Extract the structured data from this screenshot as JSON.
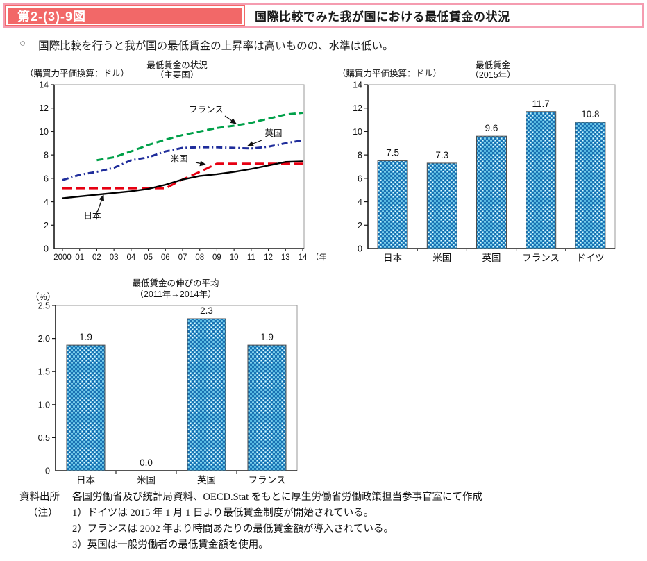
{
  "header": {
    "tag": "第2-(3)-9図",
    "title": "国際比較でみた我が国における最低賃金の状況"
  },
  "lead": {
    "bullet": "○",
    "text": "国際比較を行うと我が国の最低賃金の上昇率は高いものの、水準は低い。"
  },
  "colors": {
    "header_tag_bg": "#f26868",
    "header_border": "#f59cb0",
    "axis": "#1a1a1a",
    "frame": "#999999",
    "bar_check_dark": "#1b72b2",
    "bar_check_light": "#4fb6e0",
    "bar_dot": "#e9f7fc",
    "bar_stroke": "#4d4d4d"
  },
  "chart_data": [
    {
      "id": "wage_trend",
      "type": "line",
      "title_lines": [
        "最低賃金の状況",
        "（主要国）"
      ],
      "unit_label": "（購買力平価換算：ドル）",
      "x_suffix": "（年）",
      "categories": [
        "2000",
        "01",
        "02",
        "03",
        "04",
        "05",
        "06",
        "07",
        "08",
        "09",
        "10",
        "11",
        "12",
        "13",
        "14"
      ],
      "ylim": [
        0,
        14
      ],
      "yticks": [
        0,
        2,
        4,
        6,
        8,
        10,
        12,
        14
      ],
      "series": [
        {
          "name": "日本",
          "color": "#000000",
          "dash": "",
          "width": 2.4,
          "values": [
            4.3,
            4.45,
            4.6,
            4.75,
            4.9,
            5.1,
            5.45,
            5.9,
            6.2,
            6.35,
            6.55,
            6.8,
            7.1,
            7.4,
            7.45
          ]
        },
        {
          "name": "米国",
          "color": "#e60012",
          "dash": "13 6",
          "width": 3,
          "values": [
            5.15,
            5.15,
            5.15,
            5.15,
            5.15,
            5.15,
            5.15,
            5.9,
            6.55,
            7.25,
            7.25,
            7.25,
            7.25,
            7.25,
            7.25
          ]
        },
        {
          "name": "英国",
          "color": "#1f2d9b",
          "dash": "9 4 2 4",
          "width": 3,
          "values": [
            5.85,
            6.3,
            6.55,
            6.9,
            7.55,
            7.8,
            8.3,
            8.6,
            8.65,
            8.65,
            8.6,
            8.55,
            8.7,
            9.0,
            9.25
          ]
        },
        {
          "name": "フランス",
          "color": "#00a049",
          "dash": "10 5",
          "width": 3,
          "values": [
            null,
            null,
            7.55,
            7.8,
            8.3,
            8.85,
            9.3,
            9.7,
            10.0,
            10.3,
            10.5,
            10.75,
            11.1,
            11.45,
            11.6
          ]
        }
      ]
    },
    {
      "id": "wage_2015",
      "type": "bar",
      "title_lines": [
        "最低賃金",
        "（2015年）"
      ],
      "unit_label": "（購買力平価換算：ドル）",
      "categories": [
        "日本",
        "米国",
        "英国",
        "フランス",
        "ドイツ"
      ],
      "values": [
        7.5,
        7.3,
        9.6,
        11.7,
        10.8
      ],
      "ylim": [
        0,
        14
      ],
      "yticks": [
        0,
        2,
        4,
        6,
        8,
        10,
        12,
        14
      ]
    },
    {
      "id": "wage_growth",
      "type": "bar",
      "title_lines": [
        "最低賃金の伸びの平均",
        "（2011年→2014年）"
      ],
      "unit_label": "（%）",
      "categories": [
        "日本",
        "米国",
        "英国",
        "フランス"
      ],
      "values": [
        1.9,
        0.0,
        2.3,
        1.9
      ],
      "ylim": [
        0,
        2.5
      ],
      "yticks": [
        0,
        0.5,
        1.0,
        1.5,
        2.0,
        2.5
      ],
      "ytick_labels": [
        "0",
        "0.5",
        "1.0",
        "1.5",
        "2.0",
        "2.5"
      ]
    }
  ],
  "footer": {
    "source_label": "資料出所",
    "source_text": "各国労働省及び統計局資料、OECD.Stat をもとに厚生労働省労働政策担当参事官室にて作成",
    "note_label": "（注）",
    "notes": [
      "1）ドイツは 2015 年 1 月 1 日より最低賃金制度が開始されている。",
      "2）フランスは 2002 年より時間あたりの最低賃金額が導入されている。",
      "3）英国は一般労働者の最低賃金額を使用。"
    ]
  }
}
